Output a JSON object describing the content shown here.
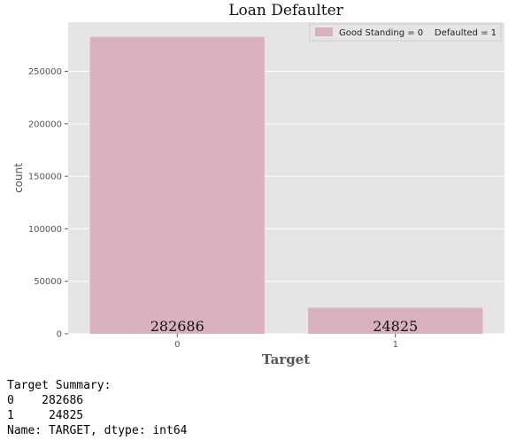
{
  "chart_data": {
    "type": "bar",
    "title": "Loan Defaulter",
    "xlabel": "Target",
    "ylabel": "count",
    "categories": [
      "0",
      "1"
    ],
    "values": [
      282686,
      24825
    ],
    "data_labels": [
      "282686",
      "24825"
    ],
    "yticks": [
      0,
      50000,
      100000,
      150000,
      200000,
      250000
    ],
    "ytick_labels": [
      "0",
      "50000",
      "100000",
      "150000",
      "200000",
      "250000"
    ],
    "ylim": [
      0,
      296820
    ],
    "grid": true,
    "legend": {
      "label": "Good Standing = 0    Defaulted = 1",
      "placement": "top-right"
    },
    "colors": {
      "bar": "#d9b0be",
      "background": "#e5e5e5",
      "grid": "#ffffff"
    }
  },
  "summary": {
    "header": "Target Summary:",
    "rows": [
      {
        "key": "0",
        "value": "282686"
      },
      {
        "key": "1",
        "value": "24825"
      }
    ],
    "footer": "Name: TARGET, dtype: int64"
  }
}
